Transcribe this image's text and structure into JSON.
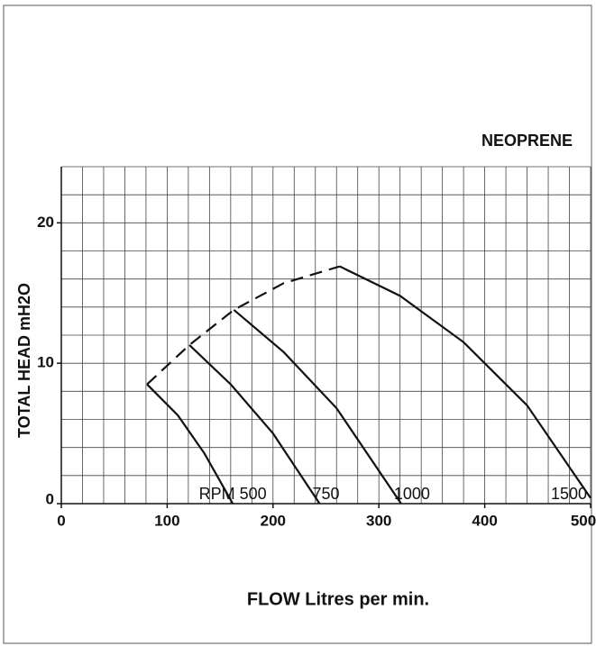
{
  "chart_data": {
    "type": "line",
    "title": "NEOPRENE",
    "x_label": "FLOW Litres per min.",
    "y_label": "TOTAL HEAD mH2O",
    "xlim": [
      0,
      500
    ],
    "ylim": [
      0,
      24
    ],
    "xticks": [
      0,
      100,
      200,
      300,
      400,
      500
    ],
    "yticks": [
      0,
      10,
      20
    ],
    "xgrid": [
      0,
      20,
      40,
      60,
      80,
      100,
      120,
      140,
      160,
      180,
      200,
      220,
      240,
      260,
      280,
      300,
      320,
      340,
      360,
      380,
      400,
      420,
      440,
      460,
      480,
      500
    ],
    "ygrid": [
      0,
      2,
      4,
      6,
      8,
      10,
      12,
      14,
      16,
      18,
      20,
      22,
      24
    ],
    "color": "#111111",
    "series": [
      {
        "name": "RPM 500",
        "x": [
          81,
          110,
          135,
          162
        ],
        "values": [
          8.5,
          6.3,
          3.6,
          0
        ]
      },
      {
        "name": "750",
        "x": [
          121,
          160,
          200,
          244
        ],
        "values": [
          11.3,
          8.5,
          5,
          0
        ]
      },
      {
        "name": "1000",
        "x": [
          163,
          210,
          260,
          321
        ],
        "values": [
          13.8,
          10.8,
          6.8,
          0
        ]
      },
      {
        "name": "1500",
        "x": [
          263,
          320,
          380,
          440,
          500
        ],
        "values": [
          16.9,
          14.8,
          11.5,
          7,
          0.4
        ]
      },
      {
        "dashed": true,
        "x": [
          81,
          121,
          163,
          210,
          263
        ],
        "values": [
          8.5,
          11.3,
          13.8,
          15.7,
          16.9
        ]
      }
    ]
  }
}
